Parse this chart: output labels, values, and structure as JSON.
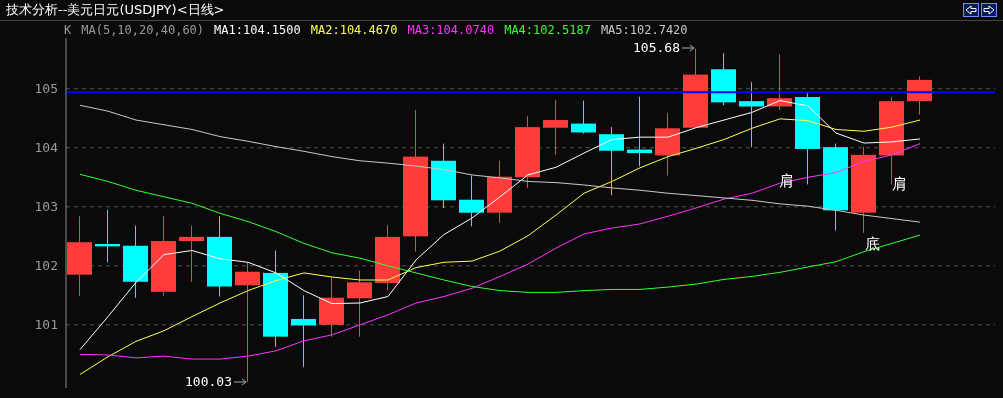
{
  "chart_data": {
    "type": "candlestick",
    "title": "技术分析--美元日元(USDJPY)<日线>",
    "subtitle": "K",
    "legend_title": "MA(5,10,20,40,60)",
    "categories": [
      null,
      null,
      null,
      null,
      null,
      null,
      null,
      null,
      null,
      null,
      null,
      null,
      null,
      null,
      null,
      null,
      null,
      null,
      null,
      null,
      null,
      null,
      null,
      null,
      null,
      null,
      null,
      null,
      null,
      null,
      null
    ],
    "ohlc": [
      [
        101.85,
        102.84,
        101.49,
        102.4
      ],
      [
        102.37,
        102.95,
        102.06,
        102.33
      ],
      [
        102.34,
        102.68,
        101.46,
        101.73
      ],
      [
        101.56,
        102.84,
        101.49,
        102.42
      ],
      [
        102.42,
        102.68,
        101.73,
        102.49
      ],
      [
        102.49,
        102.84,
        101.48,
        101.65
      ],
      [
        101.67,
        102.06,
        100.03,
        101.9
      ],
      [
        101.88,
        102.26,
        100.63,
        100.8
      ],
      [
        101.1,
        101.5,
        100.29,
        100.99
      ],
      [
        101.0,
        101.8,
        100.8,
        101.46
      ],
      [
        101.45,
        101.92,
        100.8,
        101.72
      ],
      [
        101.71,
        102.69,
        101.59,
        102.49
      ],
      [
        102.5,
        104.64,
        102.24,
        103.85
      ],
      [
        103.78,
        104.07,
        102.98,
        103.11
      ],
      [
        103.12,
        103.53,
        102.67,
        102.9
      ],
      [
        102.9,
        103.78,
        102.73,
        103.51
      ],
      [
        103.5,
        104.54,
        103.32,
        104.35
      ],
      [
        104.34,
        104.81,
        103.88,
        104.47
      ],
      [
        104.41,
        104.8,
        104.24,
        104.26
      ],
      [
        104.23,
        104.35,
        103.2,
        103.95
      ],
      [
        103.97,
        104.86,
        103.69,
        103.91
      ],
      [
        103.87,
        104.59,
        103.53,
        104.33
      ],
      [
        104.34,
        105.68,
        104.34,
        105.24
      ],
      [
        105.33,
        105.6,
        104.72,
        104.77
      ],
      [
        104.79,
        105.11,
        104.01,
        104.7
      ],
      [
        104.7,
        105.58,
        104.64,
        104.84
      ],
      [
        104.86,
        104.93,
        103.38,
        103.98
      ],
      [
        104.01,
        104.07,
        102.6,
        102.94
      ],
      [
        102.9,
        104.02,
        102.56,
        103.88
      ],
      [
        103.87,
        104.86,
        103.38,
        104.79
      ],
      [
        104.79,
        105.21,
        104.56,
        105.15
      ]
    ],
    "colors": [
      "#ff3c3c",
      "#00ffff",
      "#00ffff",
      "#ff3c3c",
      "#ff3c3c",
      "#00ffff",
      "#ff3c3c",
      "#00ffff",
      "#00ffff",
      "#ff3c3c",
      "#ff3c3c",
      "#ff3c3c",
      "#ff3c3c",
      "#00ffff",
      "#00ffff",
      "#ff3c3c",
      "#ff3c3c",
      "#ff3c3c",
      "#00ffff",
      "#00ffff",
      "#00ffff",
      "#ff3c3c",
      "#ff3c3c",
      "#00ffff",
      "#00ffff",
      "#ff3c3c",
      "#00ffff",
      "#00ffff",
      "#ff3c3c",
      "#ff3c3c",
      "#ff3c3c"
    ],
    "series": [
      {
        "type": "line",
        "name": "MA1:104.1500",
        "color": "#ffffff",
        "values": [
          100.58,
          101.14,
          101.72,
          102.19,
          102.26,
          102.12,
          102.06,
          101.88,
          101.58,
          101.36,
          101.37,
          101.48,
          102.1,
          102.53,
          102.81,
          103.17,
          103.54,
          103.67,
          103.91,
          104.14,
          104.18,
          104.18,
          104.34,
          104.47,
          104.6,
          104.8,
          104.71,
          104.25,
          104.08,
          104.1,
          104.15
        ]
      },
      {
        "type": "line",
        "name": "MA2:104.4670",
        "color": "#ffff55",
        "values": [
          100.16,
          100.46,
          100.72,
          100.9,
          101.14,
          101.37,
          101.58,
          101.75,
          101.88,
          101.81,
          101.76,
          101.76,
          101.97,
          102.06,
          102.08,
          102.25,
          102.51,
          102.86,
          103.23,
          103.43,
          103.66,
          103.85,
          103.99,
          104.14,
          104.33,
          104.49,
          104.46,
          104.31,
          104.28,
          104.35,
          104.47
        ]
      },
      {
        "type": "line",
        "name": "MA3:104.0740",
        "color": "#ff33ff",
        "values": [
          100.5,
          100.49,
          100.44,
          100.47,
          100.42,
          100.42,
          100.47,
          100.56,
          100.73,
          100.83,
          101.0,
          101.17,
          101.37,
          101.48,
          101.62,
          101.82,
          102.03,
          102.3,
          102.54,
          102.64,
          102.71,
          102.84,
          102.98,
          103.13,
          103.23,
          103.4,
          103.5,
          103.58,
          103.77,
          103.88,
          104.07
        ]
      },
      {
        "type": "line",
        "name": "MA4:102.5187",
        "color": "#33ff33",
        "values": [
          103.55,
          103.43,
          103.28,
          103.17,
          103.06,
          102.89,
          102.75,
          102.58,
          102.38,
          102.22,
          102.13,
          102.0,
          101.88,
          101.76,
          101.65,
          101.58,
          101.55,
          101.55,
          101.58,
          101.6,
          101.6,
          101.64,
          101.69,
          101.77,
          101.82,
          101.89,
          101.98,
          102.07,
          102.24,
          102.38,
          102.52
        ]
      },
      {
        "type": "line",
        "name": "MA5:102.7420",
        "color": "#c8c8c8",
        "values": [
          104.72,
          104.62,
          104.47,
          104.39,
          104.31,
          104.19,
          104.11,
          104.02,
          103.94,
          103.85,
          103.78,
          103.74,
          103.69,
          103.63,
          103.54,
          103.49,
          103.43,
          103.41,
          103.37,
          103.32,
          103.28,
          103.23,
          103.19,
          103.15,
          103.11,
          103.05,
          103.01,
          102.94,
          102.86,
          102.8,
          102.74
        ]
      }
    ],
    "ylim": [
      99.93,
      105.86
    ],
    "yticks": [
      101,
      102,
      103,
      104,
      105
    ],
    "grid": "y",
    "legend": "top left",
    "marker": "none",
    "line_style": "solid",
    "ref_lines": [
      {
        "axis": "y",
        "value": 104.94,
        "color": "#0000ff"
      }
    ],
    "annotations": [
      "100.03",
      "105.68",
      "肩",
      "底",
      "肩"
    ]
  }
}
